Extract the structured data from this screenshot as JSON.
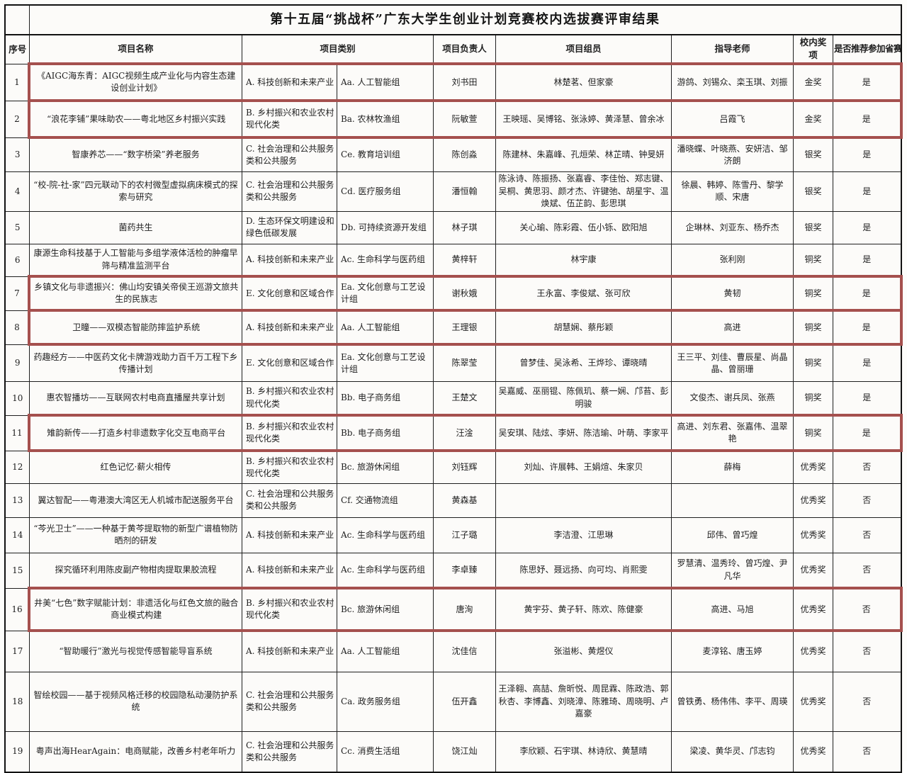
{
  "title": "第十五届“挑战杯”广东大学生创业计划竞赛校内选拔赛评审结果",
  "headers": {
    "serial": "序号",
    "project_name": "项目名称",
    "category": "项目类别",
    "leader": "项目负责人",
    "members": "项目组员",
    "teachers": "指导老师",
    "award": "校内奖项",
    "recommend": "是否推荐参加省赛"
  },
  "colors": {
    "highlight_box": "#a5504e",
    "table_border": "#1f1f1f",
    "paper_background": "#fcfbf9"
  },
  "rows": [
    {
      "no": "1",
      "name": "《AIGC海东青：AIGC视频生成产业化与内容生态建设创业计划》",
      "category": "A. 科技创新和未来产业",
      "group": "Aa. 人工智能组",
      "leader": "刘书田",
      "members": "林楚茗、但家豪",
      "teachers": "游鸽、刘锡众、栾玉琪、刘振",
      "award": "金奖",
      "recommend": "是",
      "highlighted": true
    },
    {
      "no": "2",
      "name": "“浪花李铺”果味助农——粤北地区乡村振兴实践",
      "category": "B. 乡村振兴和农业农村现代化类",
      "group": "Ba. 农林牧渔组",
      "leader": "阮敏萱",
      "members": "王映瑶、吴博铭、张泳婷、黄泽慧、曾余冰",
      "teachers": "吕霞飞",
      "award": "金奖",
      "recommend": "是",
      "highlighted": true
    },
    {
      "no": "3",
      "name": "智康养芯——“数字桥梁”养老服务",
      "category": "C. 社会治理和公共服务类和公共服务",
      "group": "Ce. 教育培训组",
      "leader": "陈创淼",
      "members": "陈建林、朱嘉峰、孔烜荣、林芷晴、钟旻妍",
      "teachers": "潘晓蝶、叶晓燕、安妍洁、邹济朗",
      "award": "银奖",
      "recommend": "是",
      "highlighted": false
    },
    {
      "no": "4",
      "name": "“校-院-社-家”四元联动下的农村微型虚拟病床模式的探索与研究",
      "category": "C. 社会治理和公共服务类和公共服务",
      "group": "Cd. 医疗服务组",
      "leader": "潘恒翰",
      "members": "陈泳诗、陈振扬、张嘉睿、李佳怡、郑志键、吴桐、黄思羽、颜才杰、许键弛、胡星宇、温焕斌、伍芷韵、彭思琪",
      "teachers": "徐晨、韩婷、陈雪丹、黎学顺、宋唐",
      "award": "银奖",
      "recommend": "是",
      "highlighted": false
    },
    {
      "no": "5",
      "name": "菌药共生",
      "category": "D. 生态环保文明建设和绿色低碳发展",
      "group": "Db. 可持续资源开发组",
      "leader": "林子琪",
      "members": "关心瑜、陈彩霞、伍小铄、欧阳旭",
      "teachers": "企琳林、刘亚东、杨乔杰",
      "award": "银奖",
      "recommend": "是",
      "highlighted": false
    },
    {
      "no": "6",
      "name": "康源生命科技基于人工智能与多组学液体活检的肿瘤早筛与精准监测平台",
      "category": "A. 科技创新和未来产业",
      "group": "Ac. 生命科学与医药组",
      "leader": "黄梓轩",
      "members": "林宇康",
      "teachers": "张利刚",
      "award": "铜奖",
      "recommend": "是",
      "highlighted": false
    },
    {
      "no": "7",
      "name": "乡镇文化与非遗振兴：佛山均安镇关帝侯王巡游文旅共生的民族志",
      "category": "E. 文化创意和区域合作",
      "group": "Ea. 文化创意与工艺设计组",
      "leader": "谢秋娥",
      "members": "王永富、李俊斌、张可欣",
      "teachers": "黄韧",
      "award": "铜奖",
      "recommend": "是",
      "highlighted": true
    },
    {
      "no": "8",
      "name": "卫瞳——双模态智能防摔监护系统",
      "category": "A. 科技创新和未来产业",
      "group": "Aa. 人工智能组",
      "leader": "王理银",
      "members": "胡慧娴、蔡彤颖",
      "teachers": "高进",
      "award": "铜奖",
      "recommend": "是",
      "highlighted": true
    },
    {
      "no": "9",
      "name": "药趣经方——中医药文化卡牌游戏助力百千万工程下乡传播计划",
      "category": "E. 文化创意和区域合作",
      "group": "Ea. 文化创意与工艺设计组",
      "leader": "陈翠莹",
      "members": "曾梦佳、吴泳希、王烨珍、谭晓晴",
      "teachers": "王三平、刘佳、曹辰星、尚晶晶、曾丽珊",
      "award": "铜奖",
      "recommend": "是",
      "highlighted": false
    },
    {
      "no": "10",
      "name": "惠农智播坊——互联网农村电商直播屋共享计划",
      "category": "B. 乡村振兴和农业农村现代化类",
      "group": "Bb. 电子商务组",
      "leader": "王楚文",
      "members": "吴嘉威、巫丽锟、陈佩玑、蔡一娴、邝苔、彭明骏",
      "teachers": "文俊杰、谢兵凤、张燕",
      "award": "铜奖",
      "recommend": "是",
      "highlighted": false
    },
    {
      "no": "11",
      "name": "雉韵新传——打造乡村非遗数字化交互电商平台",
      "category": "B. 乡村振兴和农业农村现代化类",
      "group": "Bb. 电子商务组",
      "leader": "汪淦",
      "members": "吴安琪、陆炫、李妍、陈洁瑜、叶萌、李家平",
      "teachers": "高进、刘东君、张嘉伟、温翠艳",
      "award": "铜奖",
      "recommend": "是",
      "highlighted": true
    },
    {
      "no": "12",
      "name": "红色记忆·薪火相传",
      "category": "B. 乡村振兴和农业农村现代化类",
      "group": "Bc. 旅游休闲组",
      "leader": "刘钰辉",
      "members": "刘灿、许展韩、王娟煊、朱家贝",
      "teachers": "薛梅",
      "award": "优秀奖",
      "recommend": "否",
      "highlighted": false
    },
    {
      "no": "13",
      "name": "翼达智配——粤港澳大湾区无人机城市配送服务平台",
      "category": "C. 社会治理和公共服务类和公共服务",
      "group": "Cf. 交通物流组",
      "leader": "黄森基",
      "members": "",
      "teachers": "",
      "award": "优秀奖",
      "recommend": "否",
      "highlighted": false
    },
    {
      "no": "14",
      "name": "“芩光卫士”——一种基于黄芩提取物的新型广谱植物防晒剂的研发",
      "category": "A. 科技创新和未来产业",
      "group": "Ac. 生命科学与医药组",
      "leader": "江子璐",
      "members": "李洁澄、江思琳",
      "teachers": "邱伟、曾巧煌",
      "award": "优秀奖",
      "recommend": "否",
      "highlighted": false
    },
    {
      "no": "15",
      "name": "探究循环利用陈皮副产物柑肉提取果胶流程",
      "category": "A. 科技创新和未来产业",
      "group": "Ac. 生命科学与医药组",
      "leader": "李卓臻",
      "members": "陈思妤、聂远扬、向可均、肖熙雯",
      "teachers": "罗慧清、温秀玲、曾巧煌、尹凡华",
      "award": "优秀奖",
      "recommend": "否",
      "highlighted": false
    },
    {
      "no": "16",
      "name": "井美“七色”数字赋能计划：非遗活化与红色文旅的融合商业模式构建",
      "category": "B. 乡村振兴和农业农村现代化类",
      "group": "Bc. 旅游休闲组",
      "leader": "唐洵",
      "members": "黄宇芬、黄子轩、陈欢、陈健豪",
      "teachers": "高进、马旭",
      "award": "优秀奖",
      "recommend": "否",
      "highlighted": true
    },
    {
      "no": "17",
      "name": "“智助暖行”激光与视觉传感智能导盲系统",
      "category": "A. 科技创新和未来产业",
      "group": "Aa. 人工智能组",
      "leader": "沈佳信",
      "members": "张溢彬、黄煜仪",
      "teachers": "麦淳铭、唐玉婷",
      "award": "优秀奖",
      "recommend": "否",
      "highlighted": false
    },
    {
      "no": "18",
      "name": "智绘校园——基于视频风格迁移的校园隐私动漫防护系统",
      "category": "C. 社会治理和公共服务类和公共服务",
      "group": "Ca. 政务服务组",
      "leader": "伍开鑫",
      "members": "王泽翱、高喆、詹昕悦、周昆霖、陈政浩、郭秋杏、李博鑫、刘晓漳、陈雅琦、周晓明、卢嘉豪",
      "teachers": "曾铁勇、杨伟伟、李平、周瑛",
      "award": "优秀奖",
      "recommend": "否",
      "highlighted": false
    },
    {
      "no": "19",
      "name": "粤声出海HearAgain：电商赋能，改善乡村老年听力",
      "category": "C. 社会治理和公共服务类和公共服务",
      "group": "Cc. 消费生活组",
      "leader": "饶江灿",
      "members": "李欣颖、石宇琪、林诗欣、黄慧晴",
      "teachers": "梁凌、黄华灵、邝志钧",
      "award": "优秀奖",
      "recommend": "否",
      "highlighted": false
    }
  ]
}
